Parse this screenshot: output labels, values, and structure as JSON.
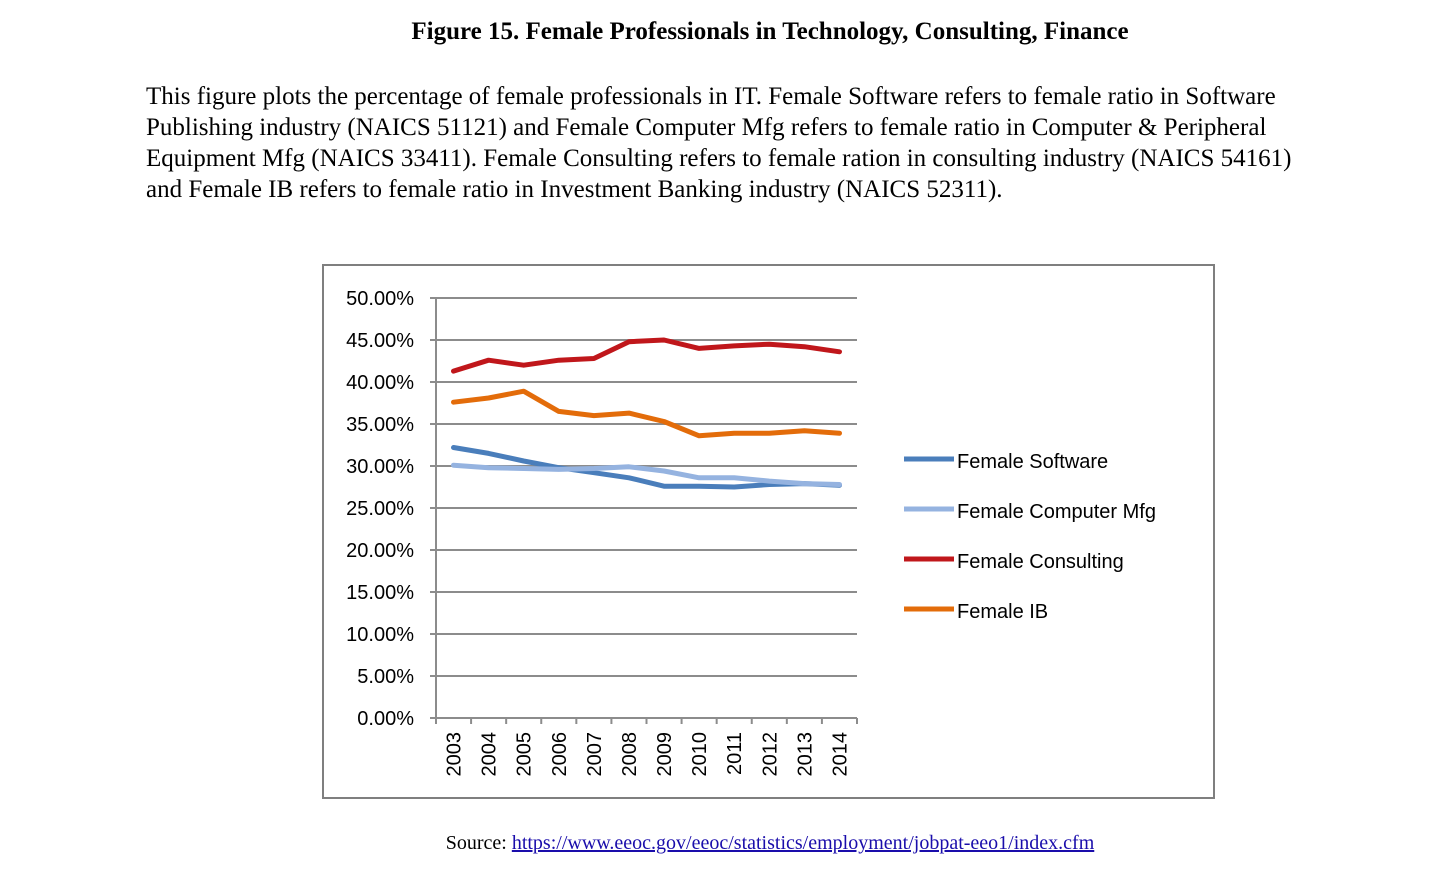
{
  "figure": {
    "title": "Figure 15. Female Professionals in Technology, Consulting, Finance",
    "caption": "This figure plots the percentage of female professionals in IT. Female Software refers to female ratio in Software Publishing industry (NAICS 51121) and Female Computer Mfg refers to female ratio in Computer & Peripheral Equipment Mfg (NAICS 33411). Female Consulting refers to female ration in consulting industry (NAICS 54161) and Female IB refers to female ratio in Investment Banking industry (NAICS 52311).",
    "source_label": "Source:",
    "source_link": "https://www.eeoc.gov/eeoc/statistics/employment/jobpat-eeo1/index.cfm"
  },
  "chart_data": {
    "type": "line",
    "title": "",
    "xlabel": "",
    "ylabel": "",
    "x": [
      "2003",
      "2004",
      "2005",
      "2006",
      "2007",
      "2008",
      "2009",
      "2010",
      "2011",
      "2012",
      "2013",
      "2014"
    ],
    "ylim": [
      0,
      50
    ],
    "yticks": [
      "0.00%",
      "5.00%",
      "10.00%",
      "15.00%",
      "20.00%",
      "25.00%",
      "30.00%",
      "35.00%",
      "40.00%",
      "45.00%",
      "50.00%"
    ],
    "grid": true,
    "legend_position": "right",
    "series": [
      {
        "name": "Female Software",
        "color": "#4a7ebb",
        "values": [
          32.2,
          31.5,
          30.6,
          29.8,
          29.2,
          28.6,
          27.6,
          27.6,
          27.5,
          27.8,
          27.9,
          27.7
        ]
      },
      {
        "name": "Female Computer Mfg",
        "color": "#95b3e0",
        "values": [
          30.1,
          29.8,
          29.7,
          29.6,
          29.7,
          29.9,
          29.4,
          28.6,
          28.6,
          28.2,
          27.9,
          27.8
        ]
      },
      {
        "name": "Female Consulting",
        "color": "#c0171b",
        "values": [
          41.3,
          42.6,
          42.0,
          42.6,
          42.8,
          44.8,
          45.0,
          44.0,
          44.3,
          44.5,
          44.2,
          43.6
        ]
      },
      {
        "name": "Female IB",
        "color": "#e36c0a",
        "values": [
          37.6,
          38.1,
          38.9,
          36.5,
          36.0,
          36.3,
          35.3,
          33.6,
          33.9,
          33.9,
          34.2,
          33.9
        ]
      }
    ]
  }
}
